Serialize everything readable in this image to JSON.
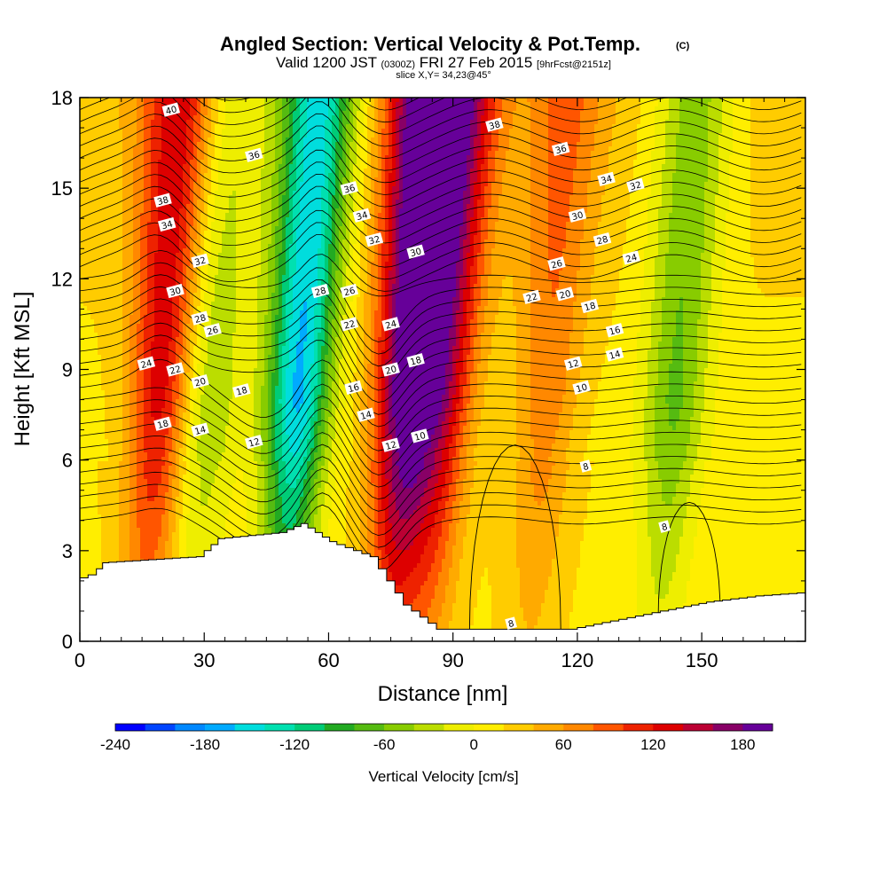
{
  "chart_data": {
    "type": "heatmap",
    "title": "Angled Section: Vertical Velocity & Pot.Temp.",
    "title_mark": "(C)",
    "subtitle": {
      "main_a": "Valid 1200 JST ",
      "utc": "(0300Z)",
      "main_b": " FRI 27 Feb 2015 ",
      "fcst": "[9hrFcst@2151z]"
    },
    "slice_label": "slice X,Y= 34,23@45°",
    "xlabel": "Distance [nm]",
    "ylabel": "Height [Kft MSL]",
    "xlim": [
      0,
      175
    ],
    "ylim": [
      0,
      18
    ],
    "xticks": [
      0,
      30,
      60,
      90,
      120,
      150
    ],
    "yticks": [
      0,
      3,
      6,
      9,
      12,
      15,
      18
    ],
    "colorbar": {
      "label": "Vertical Velocity [cm/s]",
      "range": [
        -240,
        200
      ],
      "step": 20,
      "ticks": [
        -240,
        -180,
        -120,
        -60,
        0,
        60,
        120,
        180
      ],
      "colors": [
        "#0000ff",
        "#0044ff",
        "#0088ff",
        "#00aaff",
        "#00dddd",
        "#00e0b0",
        "#00cc77",
        "#22aa22",
        "#55bb11",
        "#88cc00",
        "#bbdd00",
        "#eeee00",
        "#ffee00",
        "#ffcc00",
        "#ffaa00",
        "#ff8800",
        "#ff5500",
        "#ee2200",
        "#dd0000",
        "#bb0033",
        "#880066",
        "#660099"
      ]
    },
    "velocity_columns": [
      {
        "x": 20,
        "velocity": 120
      },
      {
        "x": 31,
        "velocity": -60
      },
      {
        "x": 53,
        "velocity": -180
      },
      {
        "x": 79,
        "velocity": 180
      },
      {
        "x": 88,
        "velocity": 120
      },
      {
        "x": 113,
        "velocity": 60
      },
      {
        "x": 144,
        "velocity": -80
      }
    ],
    "terrain": [
      [
        0,
        2
      ],
      [
        4,
        2.2
      ],
      [
        7,
        2.6
      ],
      [
        30,
        2.8
      ],
      [
        35,
        3.4
      ],
      [
        50,
        3.6
      ],
      [
        55,
        3.9
      ],
      [
        62,
        3.3
      ],
      [
        72,
        2.8
      ],
      [
        80,
        1.2
      ],
      [
        88,
        0.4
      ],
      [
        120,
        0.4
      ],
      [
        142,
        1.0
      ],
      [
        153,
        1.3
      ],
      [
        165,
        1.5
      ],
      [
        175,
        1.6
      ]
    ],
    "contour_labels": [
      {
        "text": "40",
        "x": 22,
        "y": 17.6
      },
      {
        "text": "38",
        "x": 20,
        "y": 14.6
      },
      {
        "text": "34",
        "x": 21,
        "y": 13.8
      },
      {
        "text": "32",
        "x": 29,
        "y": 12.6
      },
      {
        "text": "30",
        "x": 23,
        "y": 11.6
      },
      {
        "text": "28",
        "x": 29,
        "y": 10.7
      },
      {
        "text": "26",
        "x": 32,
        "y": 10.3
      },
      {
        "text": "24",
        "x": 16,
        "y": 9.2
      },
      {
        "text": "22",
        "x": 23,
        "y": 9.0
      },
      {
        "text": "20",
        "x": 29,
        "y": 8.6
      },
      {
        "text": "18",
        "x": 39,
        "y": 8.3
      },
      {
        "text": "18",
        "x": 20,
        "y": 7.2
      },
      {
        "text": "14",
        "x": 29,
        "y": 7.0
      },
      {
        "text": "12",
        "x": 42,
        "y": 6.6
      },
      {
        "text": "36",
        "x": 42,
        "y": 16.1
      },
      {
        "text": "36",
        "x": 65,
        "y": 15.0
      },
      {
        "text": "34",
        "x": 68,
        "y": 14.1
      },
      {
        "text": "32",
        "x": 71,
        "y": 13.3
      },
      {
        "text": "28",
        "x": 58,
        "y": 11.6
      },
      {
        "text": "26",
        "x": 65,
        "y": 11.6
      },
      {
        "text": "22",
        "x": 65,
        "y": 10.5
      },
      {
        "text": "24",
        "x": 75,
        "y": 10.5
      },
      {
        "text": "20",
        "x": 75,
        "y": 9.0
      },
      {
        "text": "18",
        "x": 81,
        "y": 9.3
      },
      {
        "text": "16",
        "x": 66,
        "y": 8.4
      },
      {
        "text": "14",
        "x": 69,
        "y": 7.5
      },
      {
        "text": "12",
        "x": 75,
        "y": 6.5
      },
      {
        "text": "10",
        "x": 82,
        "y": 6.8
      },
      {
        "text": "30",
        "x": 81,
        "y": 12.9
      },
      {
        "text": "38",
        "x": 100,
        "y": 17.1
      },
      {
        "text": "36",
        "x": 116,
        "y": 16.3
      },
      {
        "text": "34",
        "x": 127,
        "y": 15.3
      },
      {
        "text": "32",
        "x": 134,
        "y": 15.1
      },
      {
        "text": "30",
        "x": 120,
        "y": 14.1
      },
      {
        "text": "28",
        "x": 126,
        "y": 13.3
      },
      {
        "text": "26",
        "x": 115,
        "y": 12.5
      },
      {
        "text": "24",
        "x": 133,
        "y": 12.7
      },
      {
        "text": "22",
        "x": 109,
        "y": 11.4
      },
      {
        "text": "20",
        "x": 117,
        "y": 11.5
      },
      {
        "text": "18",
        "x": 123,
        "y": 11.1
      },
      {
        "text": "16",
        "x": 129,
        "y": 10.3
      },
      {
        "text": "14",
        "x": 129,
        "y": 9.5
      },
      {
        "text": "12",
        "x": 119,
        "y": 9.2
      },
      {
        "text": "10",
        "x": 121,
        "y": 8.4
      },
      {
        "text": "8",
        "x": 122,
        "y": 5.8
      },
      {
        "text": "8",
        "x": 141,
        "y": 3.8
      },
      {
        "text": "8",
        "x": 104,
        "y": 0.6
      }
    ]
  }
}
